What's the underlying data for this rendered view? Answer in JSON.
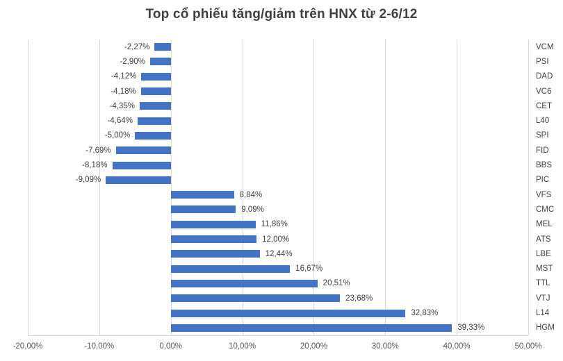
{
  "chart_data": {
    "type": "bar",
    "orientation": "horizontal",
    "title": "Top cổ phiếu tăng/giảm trên HNX từ 2-6/12",
    "categories": [
      "VCM",
      "PSI",
      "DAD",
      "VC6",
      "CET",
      "L40",
      "SPI",
      "FID",
      "BBS",
      "PIC",
      "VFS",
      "CMC",
      "MEL",
      "ATS",
      "LBE",
      "MST",
      "TTL",
      "VTJ",
      "L14",
      "HGM"
    ],
    "values": [
      -2.27,
      -2.9,
      -4.12,
      -4.18,
      -4.35,
      -4.64,
      -5.0,
      -7.69,
      -8.18,
      -9.09,
      8.84,
      9.09,
      11.86,
      12.0,
      12.44,
      16.67,
      20.51,
      23.68,
      32.83,
      39.33
    ],
    "value_labels": [
      "-2,27%",
      "-2,90%",
      "-4,12%",
      "-4,18%",
      "-4,35%",
      "-4,64%",
      "-5,00%",
      "-7,69%",
      "-8,18%",
      "-9,09%",
      "8,84%",
      "9,09%",
      "11,86%",
      "12,00%",
      "12,44%",
      "16,67%",
      "20,51%",
      "23,68%",
      "32,83%",
      "39,33%"
    ],
    "xlabel": "",
    "ylabel": "",
    "xlim": [
      -20,
      50
    ],
    "x_tick_values": [
      -20,
      -10,
      0,
      10,
      20,
      30,
      40,
      50
    ],
    "x_tick_labels": [
      "-20,00%",
      "-10,00%",
      "0,00%",
      "10,00%",
      "20,00%",
      "30,00%",
      "40,00%",
      "50,00%"
    ],
    "grid": true,
    "legend_position": "none",
    "colors": {
      "bar": "#4472C4",
      "gridline": "#D9D9D9",
      "value_label_text": "#404040",
      "tick_text": "#595959",
      "category_text": "#404040",
      "title_text": "#404040",
      "background": "#FFFFFF"
    }
  }
}
